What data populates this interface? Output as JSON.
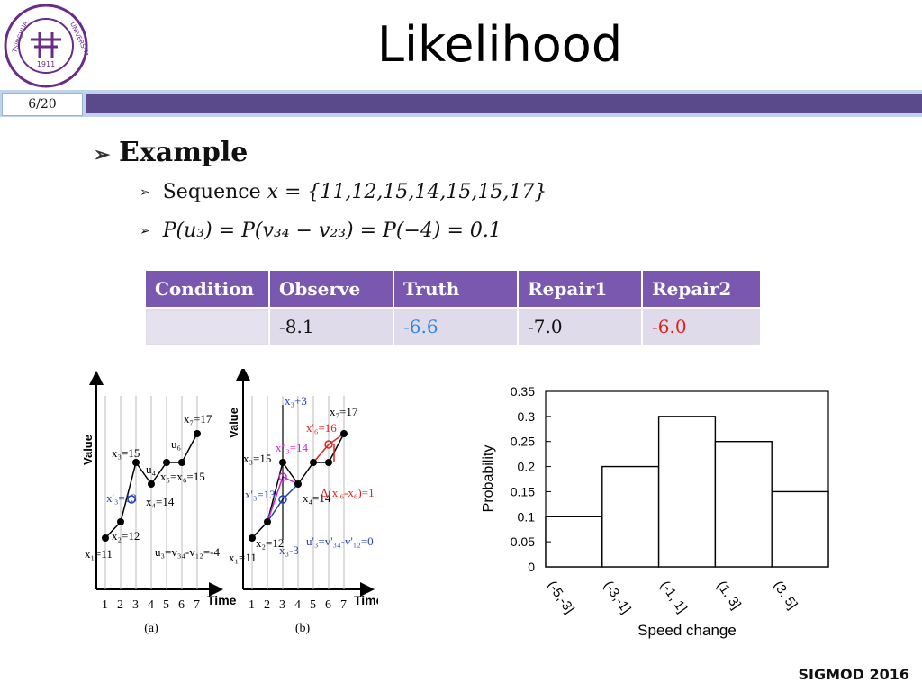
{
  "header": {
    "title": "Likelihood",
    "slide_number": "6/20",
    "logo_text_left": "TSINGHUA",
    "logo_text_right": "UNIVERSITY",
    "logo_year": "1911"
  },
  "content": {
    "bullet_main": "Example",
    "sub1_prefix": "Sequence ",
    "sub1_formula": "x = {11,12,15,14,15,15,17}",
    "sub2_formula": "P(u₃) = P(v₃₄ − v₂₃) = P(−4) = 0.1"
  },
  "table": {
    "headers": [
      "Condition",
      "Observe",
      "Truth",
      "Repair1",
      "Repair2"
    ],
    "row": [
      "",
      "-8.1",
      "-6.6",
      "-7.0",
      "-6.0"
    ]
  },
  "figure_left": {
    "ylabel_a": "Value",
    "ylabel_b": "Value",
    "xlabel_a": "Time",
    "xlabel_b": "Time",
    "caption_a": "(a)",
    "caption_b": "(b)",
    "ticks": [
      "1",
      "2",
      "3",
      "4",
      "5",
      "6",
      "7"
    ],
    "labels_a": {
      "x1": "x₁=11",
      "x2": "x₂=12",
      "x3": "x₃=15",
      "x4": "x₄=14",
      "x56": "x₅=x₆=15",
      "x7": "x₇=17",
      "xp3": "x'₃=13",
      "u4": "u₄",
      "u6": "u₆",
      "u3": "u₃=v₃₄-v₁₂=-4"
    },
    "labels_b": {
      "x1": "x₁=11",
      "x2": "x₂=12",
      "x3": "x₃=15",
      "x4": "x₄=14",
      "x7": "x₇=17",
      "xp3": "x'₃=13",
      "xpp3": "x''₃=14",
      "xp6": "x'₆=16",
      "x3p3": "x₃+3",
      "x3m3": "x₃-3",
      "u3": "u'₃=v'₃₄-v'₁₂=0",
      "delta": "Δ(x'₆-x₆)=1"
    }
  },
  "chart_data": {
    "type": "bar",
    "categories": [
      "(-5,-3]",
      "(-3,-1]",
      "(-1, 1]",
      "(1, 3]",
      "(3, 5]"
    ],
    "values": [
      0.1,
      0.2,
      0.3,
      0.25,
      0.15
    ],
    "xlabel": "Speed change",
    "ylabel": "Probability",
    "ylim": [
      0,
      0.35
    ],
    "yticks": [
      "0",
      "0.05",
      "0.1",
      "0.15",
      "0.2",
      "0.25",
      "0.3",
      "0.35"
    ],
    "grid": false
  },
  "footer": {
    "text": "SIGMOD 2016"
  }
}
